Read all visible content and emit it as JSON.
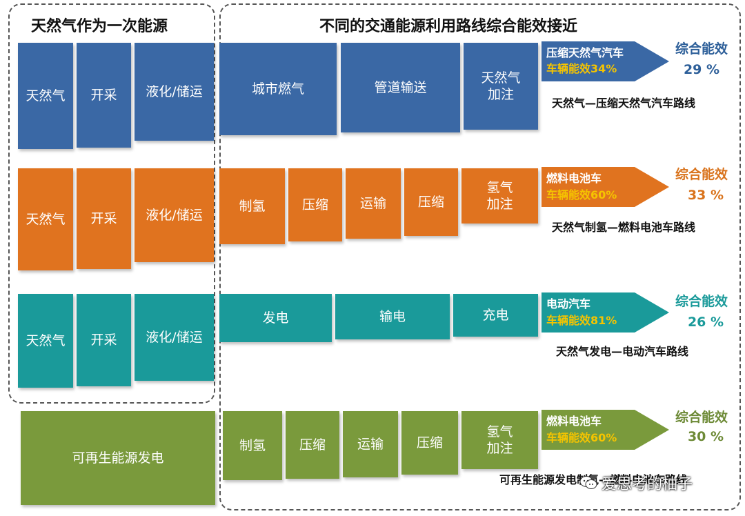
{
  "headers": {
    "left": "天然气作为一次能源",
    "right": "不同的交通能源利用路线综合能效接近"
  },
  "rows": [
    {
      "color": "#3a68a5",
      "source_blocks": [
        "天然气",
        "开采",
        "液化/储运"
      ],
      "steps": [
        "城市燃气",
        "管道输送",
        "天然气\n加注"
      ],
      "vehicle": "压缩天然气汽车",
      "vehicle_eff": "车辆能效34%",
      "eff_title": "综合能效",
      "eff_value": "29 %",
      "route": "天然气—压缩天然气汽车路线"
    },
    {
      "color": "#e0731f",
      "source_blocks": [
        "天然气",
        "开采",
        "液化/储运"
      ],
      "steps": [
        "制氢",
        "压缩",
        "运输",
        "压缩",
        "氢气\n加注"
      ],
      "vehicle": "燃料电池车",
      "vehicle_eff": "车辆能效60%",
      "eff_title": "综合能效",
      "eff_value": "33 %",
      "route": "天然气制氢—燃料电池车路线"
    },
    {
      "color": "#1a9a9a",
      "source_blocks": [
        "天然气",
        "开采",
        "液化/储运"
      ],
      "steps": [
        "发电",
        "输电",
        "充电"
      ],
      "vehicle": "电动汽车",
      "vehicle_eff": "车辆能效81%",
      "eff_title": "综合能效",
      "eff_value": "26 %",
      "route": "天然气发电—电动汽车路线"
    },
    {
      "color": "#7a9a3c",
      "source_blocks": [
        "可再生能源发电"
      ],
      "steps": [
        "制氢",
        "压缩",
        "运输",
        "压缩",
        "氢气\n加注"
      ],
      "vehicle": "燃料电池车",
      "vehicle_eff": "车辆能效60%",
      "eff_title": "综合能效",
      "eff_value": "30 %",
      "route": "可再生能源发电制氢—燃料电池车路线"
    }
  ],
  "watermark": "爱思考的柚子",
  "eff_colors": [
    "#2d5f99",
    "#d9731c",
    "#1a9a9a",
    "#6d8a36"
  ]
}
